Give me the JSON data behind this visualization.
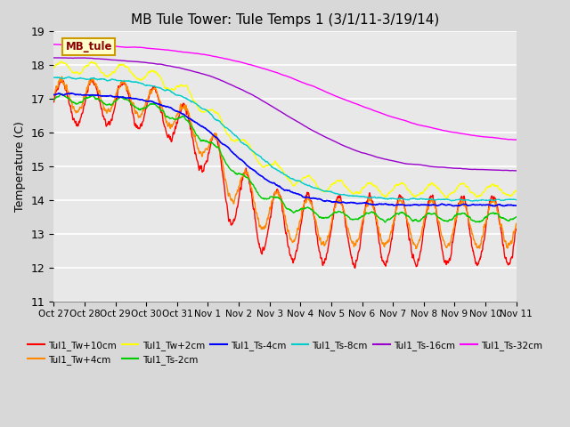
{
  "title": "MB Tule Tower: Tule Temps 1 (3/1/11-3/19/14)",
  "ylabel": "Temperature (C)",
  "ylim": [
    11.0,
    19.0
  ],
  "yticks": [
    11.0,
    12.0,
    13.0,
    14.0,
    15.0,
    16.0,
    17.0,
    18.0,
    19.0
  ],
  "xtick_labels": [
    "Oct 27",
    "Oct 28",
    "Oct 29",
    "Oct 30",
    "Oct 31",
    "Nov 1",
    "Nov 2",
    "Nov 3",
    "Nov 4",
    "Nov 5",
    "Nov 6",
    "Nov 7",
    "Nov 8",
    "Nov 9",
    "Nov 10",
    "Nov 11"
  ],
  "series": [
    {
      "name": "Tul1_Tw+10cm",
      "color": "#ff0000"
    },
    {
      "name": "Tul1_Tw+4cm",
      "color": "#ff8800"
    },
    {
      "name": "Tul1_Tw+2cm",
      "color": "#ffff00"
    },
    {
      "name": "Tul1_Ts-2cm",
      "color": "#00cc00"
    },
    {
      "name": "Tul1_Ts-4cm",
      "color": "#0000ff"
    },
    {
      "name": "Tul1_Ts-8cm",
      "color": "#00cccc"
    },
    {
      "name": "Tul1_Ts-16cm",
      "color": "#9900cc"
    },
    {
      "name": "Tul1_Ts-32cm",
      "color": "#ff00ff"
    }
  ],
  "legend_box_color": "#ffffcc",
  "legend_box_edge": "#cc9900",
  "legend_label": "MB_tule",
  "axis_bg": "#e8e8e8",
  "title_fontsize": 11
}
